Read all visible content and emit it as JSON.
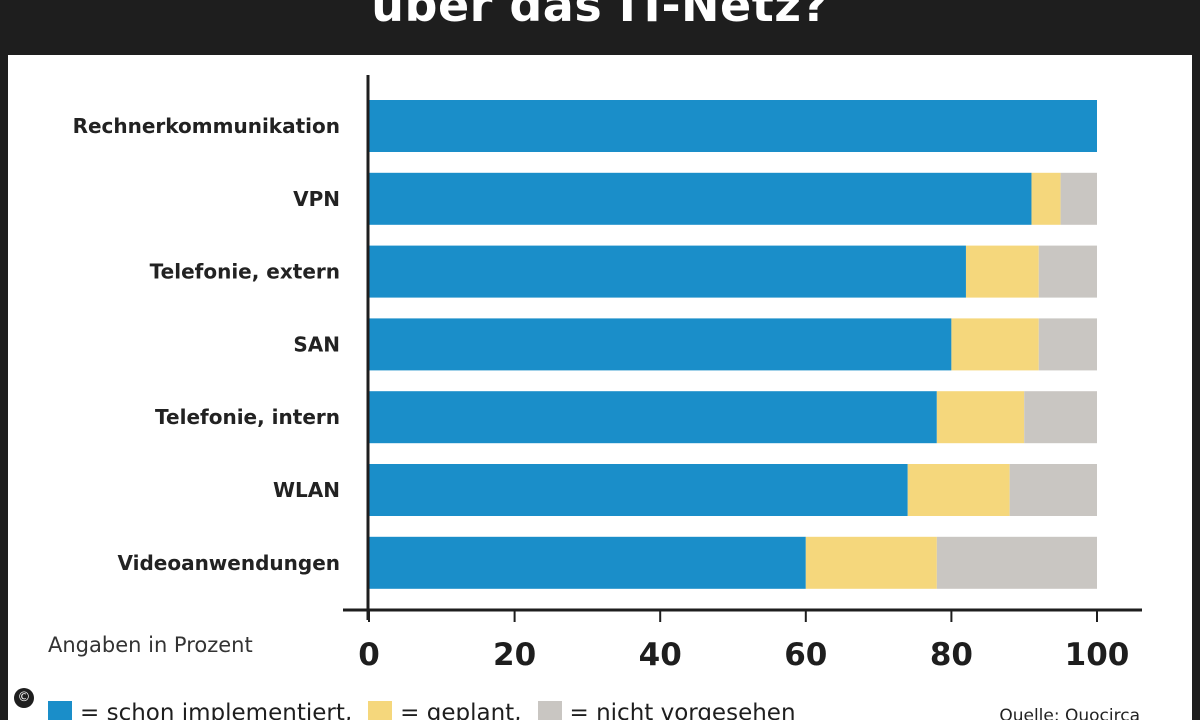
{
  "title": "über das IT-Netz?",
  "unit_note": "Angaben in Prozent",
  "source": "Quelle: Quocirca",
  "copyright_symbol": "©",
  "legend": [
    {
      "label": "= schon implementiert,",
      "color": "#1a8ec9"
    },
    {
      "label": "= geplant,",
      "color": "#f5d77c"
    },
    {
      "label": "= nicht vorgesehen",
      "color": "#c9c6c2"
    }
  ],
  "colors": {
    "implemented": "#1a8ec9",
    "planned": "#f5d77c",
    "not_planned": "#c9c6c2",
    "frame": "#1e1e1e"
  },
  "chart_data": {
    "type": "bar",
    "orientation": "horizontal",
    "stacked": true,
    "title": "über das IT-Netz?",
    "xlim": [
      0,
      100
    ],
    "xticks": [
      "0",
      "20",
      "40",
      "60",
      "80",
      "100"
    ],
    "categories": [
      "Rechnerkommunikation",
      "VPN",
      "Telefonie, extern",
      "SAN",
      "Telefonie, intern",
      "WLAN",
      "Videoanwendungen"
    ],
    "series": [
      {
        "name": "schon implementiert",
        "values": [
          100,
          91,
          82,
          80,
          78,
          74,
          60
        ]
      },
      {
        "name": "geplant",
        "values": [
          0,
          4,
          10,
          12,
          12,
          14,
          18
        ]
      },
      {
        "name": "nicht vorgesehen",
        "values": [
          0,
          5,
          8,
          8,
          10,
          12,
          22
        ]
      }
    ],
    "legend_position": "bottom"
  }
}
